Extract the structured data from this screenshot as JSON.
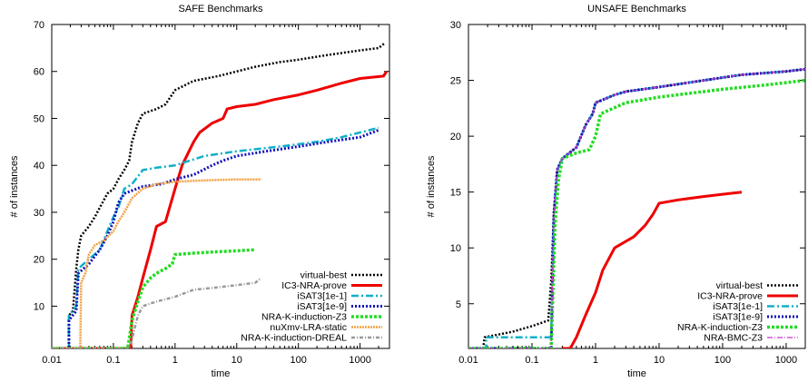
{
  "chart_data": [
    {
      "type": "line",
      "title": "SAFE Benchmarks",
      "xlabel": "time",
      "ylabel": "# of instances",
      "xscale": "log",
      "xlim": [
        0.01,
        3000
      ],
      "ylim": [
        1,
        70
      ],
      "xticks": [
        0.01,
        0.1,
        1,
        10,
        100,
        1000
      ],
      "xtick_labels": [
        "0.01",
        "0.1",
        "1",
        "10",
        "100",
        "1000"
      ],
      "yticks": [
        10,
        20,
        30,
        40,
        50,
        60,
        70
      ],
      "ytick_labels": [
        "10",
        "20",
        "30",
        "40",
        "50",
        "60",
        "70"
      ],
      "legend_position": "bottom-right",
      "series": [
        {
          "name": "virtual-best",
          "color": "#000000",
          "dash": "2,2",
          "width": 2.5,
          "points": [
            [
              0.01,
              1
            ],
            [
              0.019,
              1
            ],
            [
              0.019,
              8
            ],
            [
              0.022,
              9
            ],
            [
              0.025,
              18
            ],
            [
              0.027,
              22
            ],
            [
              0.03,
              25
            ],
            [
              0.04,
              27
            ],
            [
              0.05,
              29
            ],
            [
              0.06,
              31
            ],
            [
              0.08,
              34
            ],
            [
              0.1,
              35
            ],
            [
              0.12,
              37
            ],
            [
              0.15,
              39
            ],
            [
              0.18,
              41
            ],
            [
              0.2,
              45
            ],
            [
              0.25,
              49
            ],
            [
              0.3,
              51
            ],
            [
              0.5,
              52
            ],
            [
              0.7,
              53
            ],
            [
              1,
              56
            ],
            [
              2,
              58
            ],
            [
              5,
              59
            ],
            [
              10,
              60
            ],
            [
              20,
              61
            ],
            [
              50,
              62
            ],
            [
              100,
              62.5
            ],
            [
              300,
              63.5
            ],
            [
              1000,
              64.5
            ],
            [
              2000,
              65
            ],
            [
              2500,
              66
            ]
          ]
        },
        {
          "name": "IC3-NRA-prove",
          "color": "#ee0000",
          "dash": "",
          "width": 3,
          "points": [
            [
              0.01,
              1
            ],
            [
              0.19,
              1
            ],
            [
              0.2,
              8
            ],
            [
              0.25,
              12
            ],
            [
              0.3,
              16
            ],
            [
              0.4,
              22
            ],
            [
              0.5,
              27
            ],
            [
              0.7,
              28
            ],
            [
              1,
              35
            ],
            [
              1.3,
              40
            ],
            [
              2,
              45
            ],
            [
              2.5,
              47
            ],
            [
              4,
              49
            ],
            [
              6,
              50
            ],
            [
              7,
              52
            ],
            [
              10,
              52.5
            ],
            [
              20,
              53
            ],
            [
              40,
              54
            ],
            [
              100,
              55
            ],
            [
              200,
              56
            ],
            [
              500,
              57.5
            ],
            [
              1000,
              58.5
            ],
            [
              2400,
              59
            ],
            [
              2700,
              60
            ]
          ]
        },
        {
          "name": "iSAT3[1e-1]",
          "color": "#10b0c8",
          "dash": "8,3,2,3",
          "width": 2.5,
          "points": [
            [
              0.01,
              1
            ],
            [
              0.019,
              1
            ],
            [
              0.019,
              8
            ],
            [
              0.025,
              10
            ],
            [
              0.027,
              18
            ],
            [
              0.04,
              20
            ],
            [
              0.06,
              22
            ],
            [
              0.08,
              26
            ],
            [
              0.1,
              29
            ],
            [
              0.12,
              31
            ],
            [
              0.15,
              35
            ],
            [
              0.2,
              36
            ],
            [
              0.3,
              39
            ],
            [
              0.5,
              39.5
            ],
            [
              1,
              40
            ],
            [
              3,
              42
            ],
            [
              10,
              43
            ],
            [
              50,
              44
            ],
            [
              200,
              45
            ],
            [
              500,
              46
            ],
            [
              1000,
              47
            ],
            [
              2000,
              48
            ]
          ]
        },
        {
          "name": "iSAT3[1e-9]",
          "color": "#1010bb",
          "dash": "2,2",
          "width": 3,
          "points": [
            [
              0.01,
              1
            ],
            [
              0.019,
              1
            ],
            [
              0.019,
              7
            ],
            [
              0.025,
              9
            ],
            [
              0.027,
              17
            ],
            [
              0.04,
              19
            ],
            [
              0.06,
              22
            ],
            [
              0.08,
              25
            ],
            [
              0.1,
              28
            ],
            [
              0.12,
              32
            ],
            [
              0.15,
              34
            ],
            [
              0.3,
              35.5
            ],
            [
              0.6,
              36
            ],
            [
              1,
              37
            ],
            [
              2,
              38
            ],
            [
              4,
              40
            ],
            [
              6,
              41
            ],
            [
              10,
              42
            ],
            [
              30,
              43
            ],
            [
              100,
              44
            ],
            [
              300,
              45
            ],
            [
              1000,
              46
            ],
            [
              2000,
              47.5
            ]
          ]
        },
        {
          "name": "NRA-K-induction-Z3",
          "color": "#22dd22",
          "dash": "3,2",
          "width": 3.5,
          "points": [
            [
              0.01,
              1
            ],
            [
              0.17,
              1
            ],
            [
              0.18,
              3
            ],
            [
              0.2,
              7
            ],
            [
              0.25,
              11
            ],
            [
              0.3,
              14
            ],
            [
              0.4,
              16
            ],
            [
              0.5,
              17
            ],
            [
              0.7,
              18
            ],
            [
              0.9,
              19
            ],
            [
              1,
              21
            ],
            [
              2,
              21.3
            ],
            [
              5,
              21.6
            ],
            [
              10,
              21.8
            ],
            [
              20,
              22
            ]
          ]
        },
        {
          "name": "nuXmv-LRA-static",
          "color": "#f0a040",
          "dash": "2,1",
          "width": 2.5,
          "points": [
            [
              0.01,
              1
            ],
            [
              0.029,
              1
            ],
            [
              0.03,
              15
            ],
            [
              0.035,
              17
            ],
            [
              0.04,
              21
            ],
            [
              0.05,
              23
            ],
            [
              0.07,
              24
            ],
            [
              0.1,
              26
            ],
            [
              0.12,
              28
            ],
            [
              0.15,
              30
            ],
            [
              0.2,
              33
            ],
            [
              0.3,
              35
            ],
            [
              0.5,
              36
            ],
            [
              1,
              36.5
            ],
            [
              3,
              36.8
            ],
            [
              10,
              37
            ],
            [
              25,
              37
            ]
          ]
        },
        {
          "name": "NRA-K-induction-DREAL",
          "color": "#999999",
          "dash": "4,2,1,2",
          "width": 2.5,
          "points": [
            [
              0.01,
              1
            ],
            [
              0.18,
              1
            ],
            [
              0.2,
              3
            ],
            [
              0.25,
              8
            ],
            [
              0.3,
              10
            ],
            [
              0.5,
              11
            ],
            [
              1,
              12
            ],
            [
              2,
              13.5
            ],
            [
              5,
              14
            ],
            [
              10,
              14.5
            ],
            [
              20,
              15
            ],
            [
              25,
              16
            ]
          ]
        }
      ]
    },
    {
      "type": "line",
      "title": "UNSAFE Benchmarks",
      "xlabel": "time",
      "ylabel": "# of instances",
      "xscale": "log",
      "xlim": [
        0.01,
        2000
      ],
      "ylim": [
        1,
        30
      ],
      "xticks": [
        0.01,
        0.1,
        1,
        10,
        100,
        1000
      ],
      "xtick_labels": [
        "0.01",
        "0.1",
        "1",
        "10",
        "100",
        "1000"
      ],
      "yticks": [
        5,
        10,
        15,
        20,
        25,
        30
      ],
      "ytick_labels": [
        "5",
        "10",
        "15",
        "20",
        "25",
        "30"
      ],
      "legend_position": "bottom-right",
      "series": [
        {
          "name": "virtual-best",
          "color": "#000000",
          "dash": "2,2",
          "width": 2.5,
          "points": [
            [
              0.01,
              1
            ],
            [
              0.017,
              1
            ],
            [
              0.018,
              2
            ],
            [
              0.05,
              2.5
            ],
            [
              0.1,
              3
            ],
            [
              0.18,
              3.5
            ],
            [
              0.2,
              7
            ],
            [
              0.22,
              13
            ],
            [
              0.25,
              17
            ],
            [
              0.3,
              18
            ],
            [
              0.5,
              19
            ],
            [
              0.7,
              21
            ],
            [
              0.9,
              22
            ],
            [
              1,
              23
            ],
            [
              2,
              23.7
            ],
            [
              3,
              24
            ],
            [
              10,
              24.4
            ],
            [
              50,
              25
            ],
            [
              200,
              25.5
            ],
            [
              1000,
              25.8
            ],
            [
              2000,
              26
            ]
          ]
        },
        {
          "name": "IC3-NRA-prove",
          "color": "#ee0000",
          "dash": "",
          "width": 3,
          "points": [
            [
              0.3,
              1
            ],
            [
              0.4,
              1
            ],
            [
              0.5,
              2
            ],
            [
              0.7,
              4
            ],
            [
              1,
              6
            ],
            [
              1.3,
              8
            ],
            [
              2,
              10
            ],
            [
              4,
              11
            ],
            [
              6,
              12
            ],
            [
              8,
              13
            ],
            [
              10,
              14
            ],
            [
              20,
              14.3
            ],
            [
              50,
              14.6
            ],
            [
              100,
              14.8
            ],
            [
              200,
              15
            ]
          ]
        },
        {
          "name": "iSAT3[1e-1]",
          "color": "#10b0c8",
          "dash": "8,3,2,3",
          "width": 2.5,
          "points": [
            [
              0.01,
              1
            ],
            [
              0.019,
              1
            ],
            [
              0.019,
              2
            ],
            [
              0.2,
              2
            ],
            [
              0.22,
              13
            ],
            [
              0.25,
              17
            ],
            [
              0.3,
              18
            ],
            [
              0.5,
              19
            ],
            [
              0.7,
              21
            ],
            [
              0.9,
              22
            ],
            [
              1,
              23
            ],
            [
              2,
              23.7
            ],
            [
              3,
              24
            ],
            [
              10,
              24.4
            ],
            [
              50,
              25
            ],
            [
              200,
              25.5
            ],
            [
              1000,
              25.8
            ],
            [
              2000,
              26
            ]
          ]
        },
        {
          "name": "iSAT3[1e-9]",
          "color": "#1010bb",
          "dash": "2,2",
          "width": 3,
          "points": [
            [
              0.01,
              1
            ],
            [
              0.2,
              1
            ],
            [
              0.22,
              13
            ],
            [
              0.25,
              17
            ],
            [
              0.3,
              18
            ],
            [
              0.5,
              19
            ],
            [
              0.7,
              21
            ],
            [
              0.9,
              22
            ],
            [
              1,
              23
            ],
            [
              2,
              23.7
            ],
            [
              3,
              24
            ],
            [
              10,
              24.4
            ],
            [
              50,
              25
            ],
            [
              200,
              25.5
            ],
            [
              1000,
              25.8
            ],
            [
              2000,
              26
            ]
          ]
        },
        {
          "name": "NRA-K-induction-Z3",
          "color": "#22dd22",
          "dash": "3,2",
          "width": 3.5,
          "points": [
            [
              0.01,
              1
            ],
            [
              0.2,
              1
            ],
            [
              0.23,
              12
            ],
            [
              0.26,
              16
            ],
            [
              0.3,
              18
            ],
            [
              0.5,
              18.5
            ],
            [
              0.8,
              18.8
            ],
            [
              1,
              20
            ],
            [
              1.2,
              22
            ],
            [
              3,
              23
            ],
            [
              10,
              23.5
            ],
            [
              100,
              24.2
            ],
            [
              500,
              24.6
            ],
            [
              2000,
              25
            ]
          ]
        },
        {
          "name": "NRA-BMC-Z3",
          "color": "#cc33cc",
          "dash": "6,2,1,2",
          "width": 1.2,
          "points": [
            [
              0.01,
              1
            ],
            [
              0.2,
              1
            ],
            [
              0.22,
              13
            ],
            [
              0.25,
              17
            ],
            [
              0.3,
              18
            ],
            [
              0.5,
              19
            ],
            [
              0.7,
              21
            ],
            [
              0.9,
              22
            ],
            [
              1,
              23
            ],
            [
              2,
              23.7
            ],
            [
              3,
              24
            ],
            [
              10,
              24.4
            ],
            [
              50,
              25
            ],
            [
              200,
              25.5
            ],
            [
              1000,
              25.8
            ],
            [
              2000,
              26
            ]
          ]
        }
      ]
    }
  ]
}
